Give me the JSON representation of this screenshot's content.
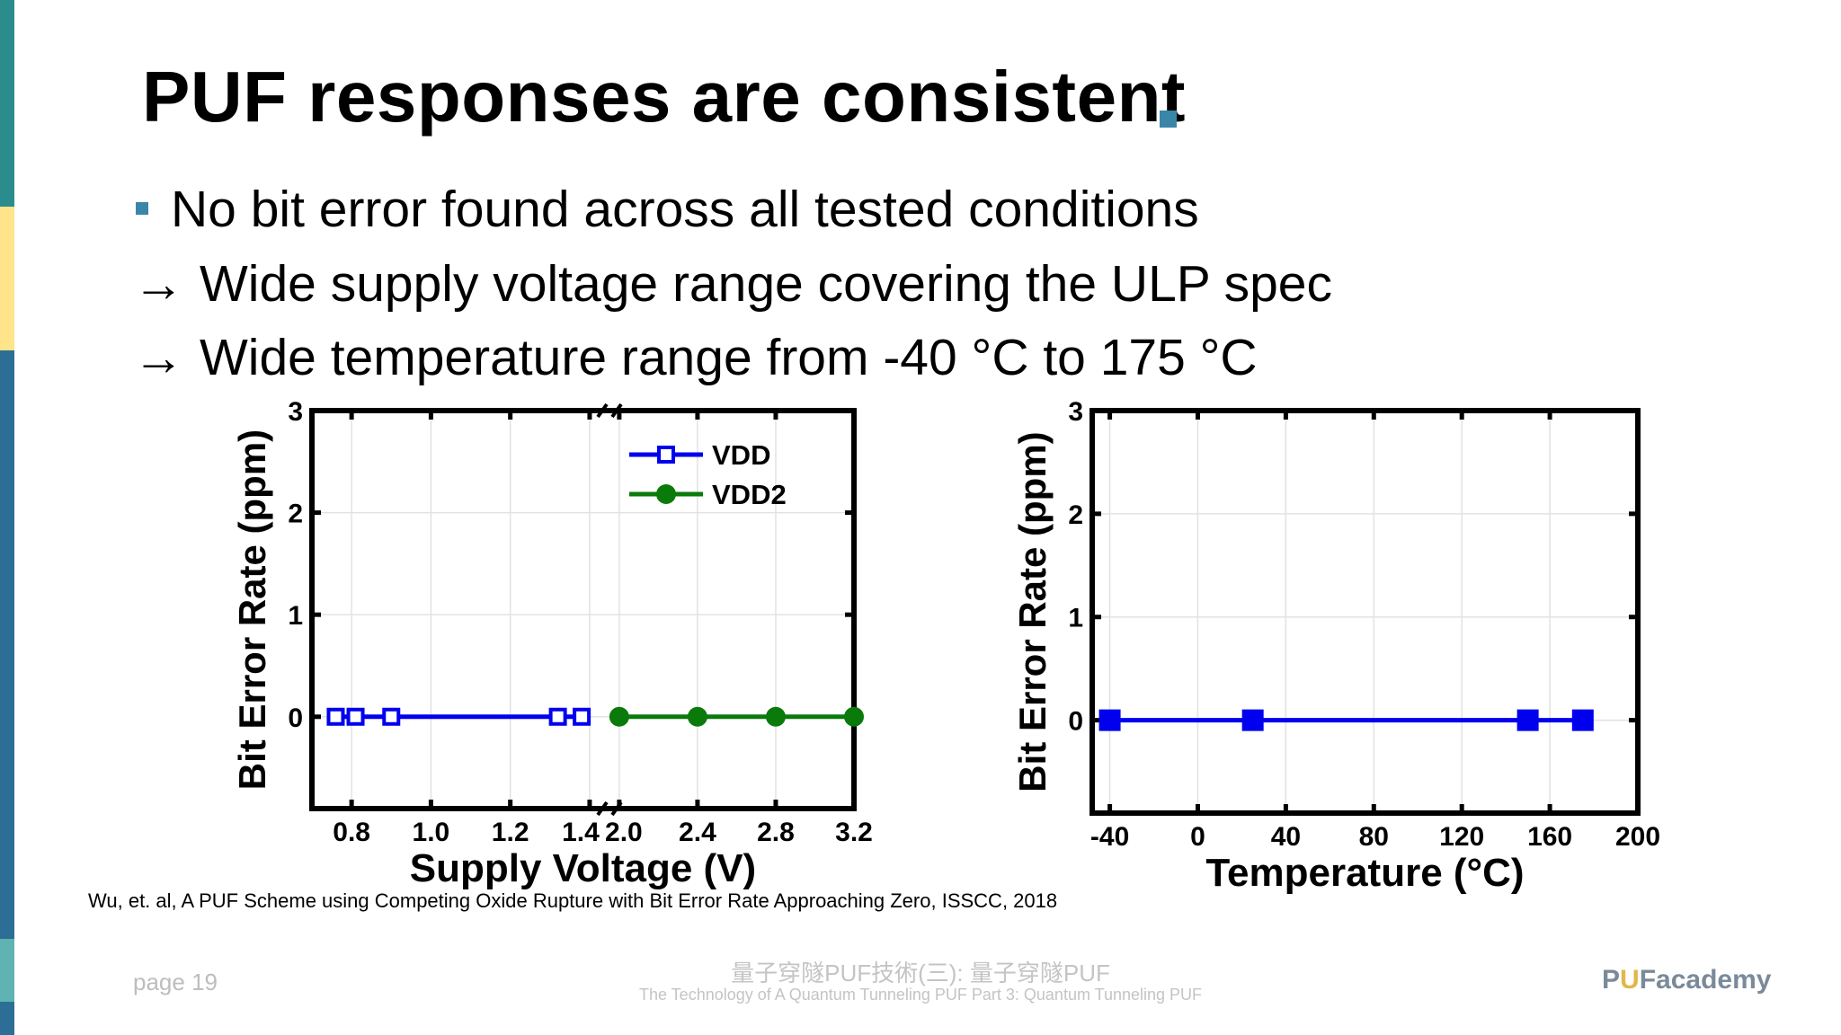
{
  "slide": {
    "title": "PUF responses are consistent",
    "bullets": [
      "No bit error found across all tested conditions",
      "Wide supply voltage range covering the ULP spec",
      "Wide temperature range from -40 °C to 175 °C"
    ],
    "arrow_glyph": "→",
    "citation": "Wu, et. al, A PUF Scheme using Competing Oxide Rupture with Bit Error Rate Approaching Zero, ISSCC, 2018",
    "page_label": "page 19",
    "footer_title": "量子穿隧PUF技術(三): 量子穿隧PUF",
    "footer_subtitle": "The Technology of A Quantum Tunneling PUF Part 3: Quantum Tunneling PUF",
    "logo_prefix": "P",
    "logo_u": "U",
    "logo_rest": "Facademy",
    "accent_color": "#3a86a8",
    "left_bar_colors": [
      "#2a8c8c",
      "#ffe48a",
      "#2d6e96",
      "#5fb3b3",
      "#2d6e96"
    ]
  },
  "chart_data": [
    {
      "type": "line",
      "xlabel": "Supply Voltage (V)",
      "ylabel": "Bit Error Rate (ppm)",
      "ylim": [
        -0.9,
        3
      ],
      "y_ticks": [
        "0",
        "1",
        "2",
        "3"
      ],
      "x_axis_broken": true,
      "x_segments": [
        {
          "xlim": [
            0.7,
            1.45
          ],
          "ticks": [
            "0.8",
            "1.0",
            "1.2",
            "1.4"
          ]
        },
        {
          "xlim": [
            1.95,
            3.2
          ],
          "ticks": [
            "2.0",
            "2.4",
            "2.8",
            "3.2"
          ]
        }
      ],
      "grid": true,
      "legend_position": "top-right",
      "series": [
        {
          "name": "VDD",
          "color": "#0000ee",
          "marker": "open-square",
          "x": [
            0.76,
            0.81,
            0.9,
            1.32,
            1.38
          ],
          "y": [
            0,
            0,
            0,
            0,
            0
          ]
        },
        {
          "name": "VDD2",
          "color": "#0a7a0a",
          "marker": "filled-circle",
          "x": [
            2.0,
            2.4,
            2.8,
            3.2
          ],
          "y": [
            0,
            0,
            0,
            0
          ]
        }
      ]
    },
    {
      "type": "line",
      "xlabel": "Temperature (°C)",
      "ylabel": "Bit Error Rate (ppm)",
      "xlim": [
        -48,
        200
      ],
      "ylim": [
        -0.9,
        3
      ],
      "x_ticks": [
        "-40",
        "0",
        "40",
        "80",
        "120",
        "160",
        "200"
      ],
      "y_ticks": [
        "0",
        "1",
        "2",
        "3"
      ],
      "grid": true,
      "series": [
        {
          "color": "#0000ee",
          "marker": "filled-square",
          "x": [
            -40,
            25,
            150,
            175
          ],
          "y": [
            0,
            0,
            0,
            0
          ]
        }
      ]
    }
  ]
}
